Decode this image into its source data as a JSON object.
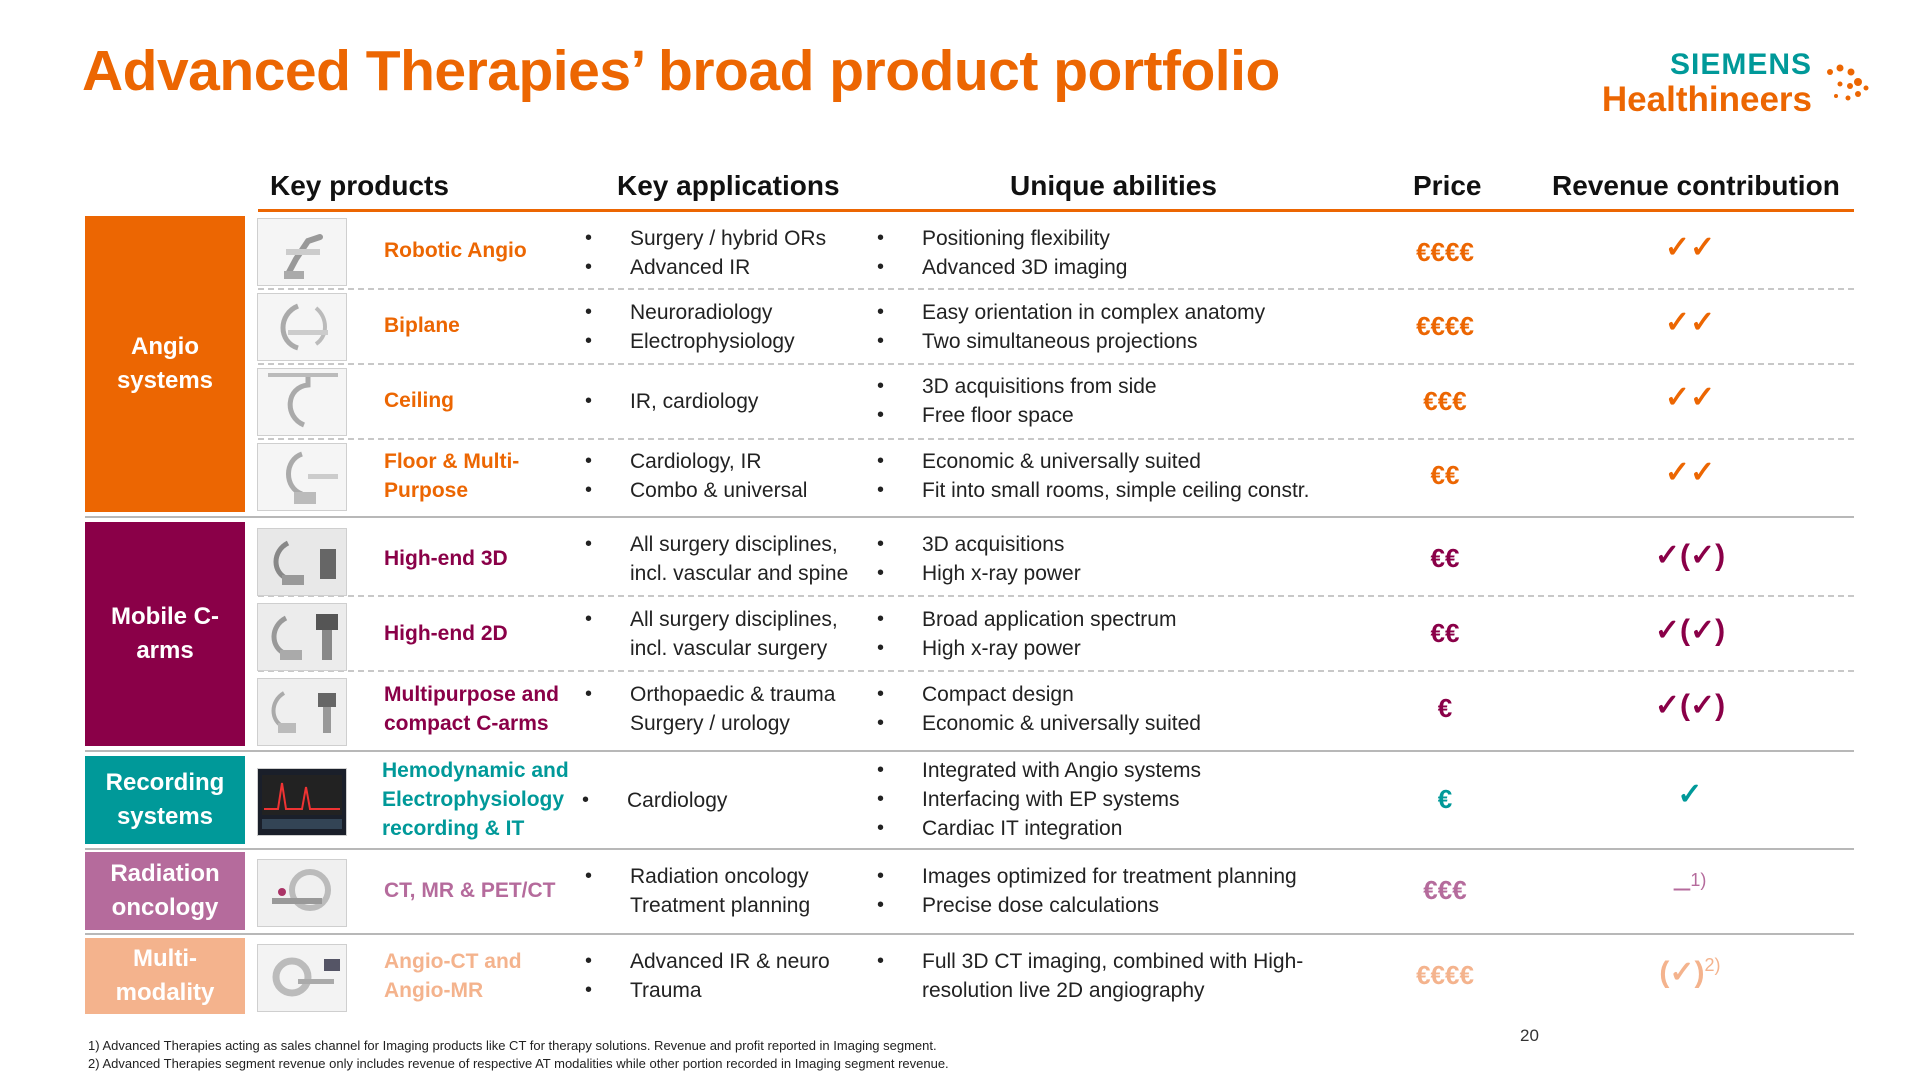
{
  "title": "Advanced Therapies’ broad product portfolio",
  "logo": {
    "line1": "SIEMENS",
    "line2": "Healthineers"
  },
  "headers": {
    "key_products": "Key products",
    "key_applications": "Key applications",
    "unique_abilities": "Unique abilities",
    "price": "Price",
    "revenue": "Revenue contribution"
  },
  "categories": [
    {
      "label": "Angio systems",
      "color": "#ec6602"
    },
    {
      "label": "Mobile C-arms",
      "color": "#8a0048"
    },
    {
      "label": "Recording systems",
      "color": "#009999"
    },
    {
      "label": "Radiation oncology",
      "color": "#b56b9c"
    },
    {
      "label": "Multi-modality",
      "color": "#f4b38d"
    }
  ],
  "rows": [
    {
      "product": "Robotic Angio",
      "apps": [
        "Surgery / hybrid ORs",
        "Advanced IR"
      ],
      "abilities": [
        "Positioning flexibility",
        "Advanced 3D imaging"
      ],
      "price": "€€€€",
      "revenue": "✓✓"
    },
    {
      "product": "Biplane",
      "apps": [
        "Neuroradiology",
        "Electrophysiology"
      ],
      "abilities": [
        "Easy orientation in complex anatomy",
        "Two simultaneous projections"
      ],
      "price": "€€€€",
      "revenue": "✓✓"
    },
    {
      "product": "Ceiling",
      "apps": [
        "IR, cardiology"
      ],
      "abilities": [
        "3D acquisitions from side",
        "Free floor space"
      ],
      "price": "€€€",
      "revenue": "✓✓"
    },
    {
      "product": "Floor & Multi-Purpose",
      "apps": [
        "Cardiology, IR",
        "Combo & universal"
      ],
      "abilities": [
        "Economic & universally suited",
        "Fit into small rooms, simple ceiling constr."
      ],
      "price": "€€",
      "revenue": "✓✓"
    },
    {
      "product": "High-end 3D",
      "apps": [
        "All surgery disciplines, incl. vascular and spine"
      ],
      "abilities": [
        "3D acquisitions",
        "High x-ray power"
      ],
      "price": "€€",
      "revenue": "✓(✓)"
    },
    {
      "product": "High-end 2D",
      "apps": [
        "All surgery disciplines, incl. vascular surgery"
      ],
      "abilities": [
        "Broad application spectrum",
        "High x-ray power"
      ],
      "price": "€€",
      "revenue": "✓(✓)"
    },
    {
      "product": "Multipurpose and compact C-arms",
      "apps": [
        "Orthopaedic & trauma Surgery / urology"
      ],
      "abilities": [
        "Compact design",
        "Economic & universally suited"
      ],
      "price": "€",
      "revenue": "✓(✓)"
    },
    {
      "product": "Hemodynamic and Electrophysiology recording & IT",
      "apps": [
        "Cardiology"
      ],
      "abilities": [
        "Integrated with Angio systems",
        "Interfacing with EP systems",
        "Cardiac IT integration"
      ],
      "price": "€",
      "revenue": "✓"
    },
    {
      "product": "CT, MR & PET/CT",
      "apps": [
        "Radiation oncology Treatment planning"
      ],
      "abilities": [
        "Images optimized for treatment planning",
        "Precise dose calculations"
      ],
      "price": "€€€",
      "revenue": "–",
      "revenue_sup": "1)"
    },
    {
      "product": "Angio-CT and Angio-MR",
      "apps": [
        "Advanced IR & neuro",
        "Trauma"
      ],
      "abilities": [
        "Full 3D CT imaging, combined with High-resolution live 2D angiography"
      ],
      "price": "€€€€",
      "revenue": "(✓)",
      "revenue_sup": "2)"
    }
  ],
  "footnotes": [
    "1) Advanced  Therapies acting as sales channel for Imaging products like CT for therapy solutions. Revenue and profit reported in Imaging segment.",
    "2) Advanced Therapies segment revenue only includes revenue of respective AT modalities while other portion recorded in Imaging segment revenue."
  ],
  "page_number": "20"
}
